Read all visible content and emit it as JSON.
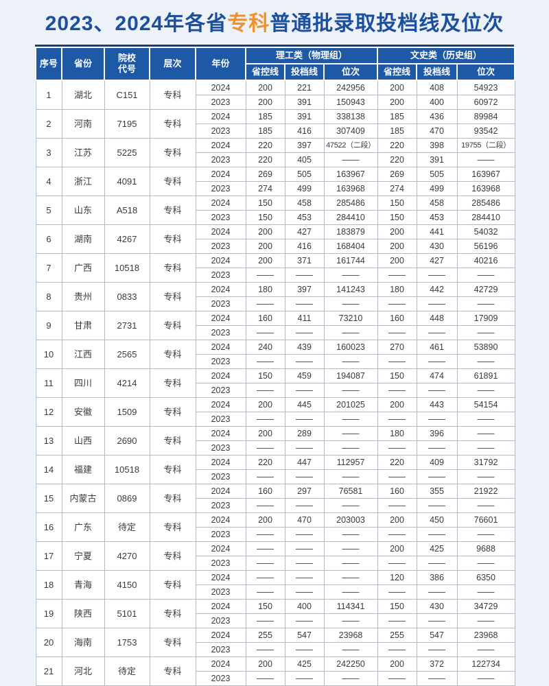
{
  "title": {
    "prefix": "2023、2024年各省",
    "highlight": "专科",
    "suffix": "普通批录取投档线及位次"
  },
  "colors": {
    "page_bg": "#edf1f8",
    "header_bg": "#1e59a5",
    "header_top_rule": "#1b4170",
    "title_blue": "#1c4f9e",
    "accent_orange": "#f0912d",
    "grid": "#b3b9c3",
    "body_text": "#3a3a3a"
  },
  "table": {
    "main_headers": [
      "序号",
      "省份",
      "院校\n代号",
      "层次",
      "年份"
    ],
    "groups": [
      {
        "label": "理工类（物理组）",
        "sub": [
          "省控线",
          "投档线",
          "位次"
        ]
      },
      {
        "label": "文史类（历史组）",
        "sub": [
          "省控线",
          "投档线",
          "位次"
        ]
      }
    ],
    "dash": "——",
    "rows": [
      {
        "seq": "1",
        "province": "湖北",
        "code": "C151",
        "level": "专科",
        "years": [
          {
            "year": "2024",
            "values": [
              "200",
              "221",
              "242956",
              "200",
              "408",
              "54923"
            ]
          },
          {
            "year": "2023",
            "values": [
              "200",
              "391",
              "150943",
              "200",
              "400",
              "60972"
            ]
          }
        ]
      },
      {
        "seq": "2",
        "province": "河南",
        "code": "7195",
        "level": "专科",
        "years": [
          {
            "year": "2024",
            "values": [
              "185",
              "391",
              "338138",
              "185",
              "436",
              "89984"
            ]
          },
          {
            "year": "2023",
            "values": [
              "185",
              "416",
              "307409",
              "185",
              "470",
              "93542"
            ]
          }
        ]
      },
      {
        "seq": "3",
        "province": "江苏",
        "code": "5225",
        "level": "专科",
        "years": [
          {
            "year": "2024",
            "values": [
              "220",
              "397",
              "47522（二段）",
              "220",
              "398",
              "19755（二段）"
            ]
          },
          {
            "year": "2023",
            "values": [
              "220",
              "405",
              "——",
              "220",
              "391",
              "——"
            ]
          }
        ]
      },
      {
        "seq": "4",
        "province": "浙江",
        "code": "4091",
        "level": "专科",
        "years": [
          {
            "year": "2024",
            "values": [
              "269",
              "505",
              "163967",
              "269",
              "505",
              "163967"
            ]
          },
          {
            "year": "2023",
            "values": [
              "274",
              "499",
              "163968",
              "274",
              "499",
              "163968"
            ]
          }
        ]
      },
      {
        "seq": "5",
        "province": "山东",
        "code": "A518",
        "level": "专科",
        "years": [
          {
            "year": "2024",
            "values": [
              "150",
              "458",
              "285486",
              "150",
              "458",
              "285486"
            ]
          },
          {
            "year": "2023",
            "values": [
              "150",
              "453",
              "284410",
              "150",
              "453",
              "284410"
            ]
          }
        ]
      },
      {
        "seq": "6",
        "province": "湖南",
        "code": "4267",
        "level": "专科",
        "years": [
          {
            "year": "2024",
            "values": [
              "200",
              "427",
              "183879",
              "200",
              "441",
              "54032"
            ]
          },
          {
            "year": "2023",
            "values": [
              "200",
              "416",
              "168404",
              "200",
              "430",
              "56196"
            ]
          }
        ]
      },
      {
        "seq": "7",
        "province": "广西",
        "code": "10518",
        "level": "专科",
        "years": [
          {
            "year": "2024",
            "values": [
              "200",
              "371",
              "161744",
              "200",
              "427",
              "40216"
            ]
          },
          {
            "year": "2023",
            "values": [
              "——",
              "——",
              "——",
              "——",
              "——",
              "——"
            ]
          }
        ]
      },
      {
        "seq": "8",
        "province": "贵州",
        "code": "0833",
        "level": "专科",
        "years": [
          {
            "year": "2024",
            "values": [
              "180",
              "397",
              "141243",
              "180",
              "442",
              "42729"
            ]
          },
          {
            "year": "2023",
            "values": [
              "——",
              "——",
              "——",
              "——",
              "——",
              "——"
            ]
          }
        ]
      },
      {
        "seq": "9",
        "province": "甘肃",
        "code": "2731",
        "level": "专科",
        "years": [
          {
            "year": "2024",
            "values": [
              "160",
              "411",
              "73210",
              "160",
              "448",
              "17909"
            ]
          },
          {
            "year": "2023",
            "values": [
              "——",
              "——",
              "——",
              "——",
              "——",
              "——"
            ]
          }
        ]
      },
      {
        "seq": "10",
        "province": "江西",
        "code": "2565",
        "level": "专科",
        "years": [
          {
            "year": "2024",
            "values": [
              "240",
              "439",
              "160023",
              "270",
              "461",
              "53890"
            ]
          },
          {
            "year": "2023",
            "values": [
              "——",
              "——",
              "——",
              "——",
              "——",
              "——"
            ]
          }
        ]
      },
      {
        "seq": "11",
        "province": "四川",
        "code": "4214",
        "level": "专科",
        "years": [
          {
            "year": "2024",
            "values": [
              "150",
              "459",
              "194087",
              "150",
              "474",
              "61891"
            ]
          },
          {
            "year": "2023",
            "values": [
              "——",
              "——",
              "——",
              "——",
              "——",
              "——"
            ]
          }
        ]
      },
      {
        "seq": "12",
        "province": "安徽",
        "code": "1509",
        "level": "专科",
        "years": [
          {
            "year": "2024",
            "values": [
              "200",
              "445",
              "201025",
              "200",
              "443",
              "54154"
            ]
          },
          {
            "year": "2023",
            "values": [
              "——",
              "——",
              "——",
              "——",
              "——",
              "——"
            ]
          }
        ]
      },
      {
        "seq": "13",
        "province": "山西",
        "code": "2690",
        "level": "专科",
        "years": [
          {
            "year": "2024",
            "values": [
              "200",
              "289",
              "——",
              "180",
              "396",
              "——"
            ]
          },
          {
            "year": "2023",
            "values": [
              "——",
              "——",
              "——",
              "——",
              "——",
              "——"
            ]
          }
        ]
      },
      {
        "seq": "14",
        "province": "福建",
        "code": "10518",
        "level": "专科",
        "years": [
          {
            "year": "2024",
            "values": [
              "220",
              "447",
              "112957",
              "220",
              "409",
              "31792"
            ]
          },
          {
            "year": "2023",
            "values": [
              "——",
              "——",
              "——",
              "——",
              "——",
              "——"
            ]
          }
        ]
      },
      {
        "seq": "15",
        "province": "内蒙古",
        "code": "0869",
        "level": "专科",
        "years": [
          {
            "year": "2024",
            "values": [
              "160",
              "297",
              "76581",
              "160",
              "355",
              "21922"
            ]
          },
          {
            "year": "2023",
            "values": [
              "——",
              "——",
              "——",
              "——",
              "——",
              "——"
            ]
          }
        ]
      },
      {
        "seq": "16",
        "province": "广东",
        "code": "待定",
        "level": "专科",
        "years": [
          {
            "year": "2024",
            "values": [
              "200",
              "470",
              "203003",
              "200",
              "450",
              "76601"
            ]
          },
          {
            "year": "2023",
            "values": [
              "——",
              "——",
              "——",
              "——",
              "——",
              "——"
            ]
          }
        ]
      },
      {
        "seq": "17",
        "province": "宁夏",
        "code": "4270",
        "level": "专科",
        "years": [
          {
            "year": "2024",
            "values": [
              "——",
              "——",
              "——",
              "200",
              "425",
              "9688"
            ]
          },
          {
            "year": "2023",
            "values": [
              "——",
              "——",
              "——",
              "——",
              "——",
              "——"
            ]
          }
        ]
      },
      {
        "seq": "18",
        "province": "青海",
        "code": "4150",
        "level": "专科",
        "years": [
          {
            "year": "2024",
            "values": [
              "——",
              "——",
              "——",
              "120",
              "386",
              "6350"
            ]
          },
          {
            "year": "2023",
            "values": [
              "——",
              "——",
              "——",
              "——",
              "——",
              "——"
            ]
          }
        ]
      },
      {
        "seq": "19",
        "province": "陕西",
        "code": "5101",
        "level": "专科",
        "years": [
          {
            "year": "2024",
            "values": [
              "150",
              "400",
              "114341",
              "150",
              "430",
              "34729"
            ]
          },
          {
            "year": "2023",
            "values": [
              "——",
              "——",
              "——",
              "——",
              "——",
              "——"
            ]
          }
        ]
      },
      {
        "seq": "20",
        "province": "海南",
        "code": "1753",
        "level": "专科",
        "years": [
          {
            "year": "2024",
            "values": [
              "255",
              "547",
              "23968",
              "255",
              "547",
              "23968"
            ]
          },
          {
            "year": "2023",
            "values": [
              "——",
              "——",
              "——",
              "——",
              "——",
              "——"
            ]
          }
        ]
      },
      {
        "seq": "21",
        "province": "河北",
        "code": "待定",
        "level": "专科",
        "years": [
          {
            "year": "2024",
            "values": [
              "200",
              "425",
              "242250",
              "200",
              "372",
              "122734"
            ]
          },
          {
            "year": "2023",
            "values": [
              "——",
              "——",
              "——",
              "——",
              "——",
              "——"
            ]
          }
        ]
      }
    ]
  }
}
